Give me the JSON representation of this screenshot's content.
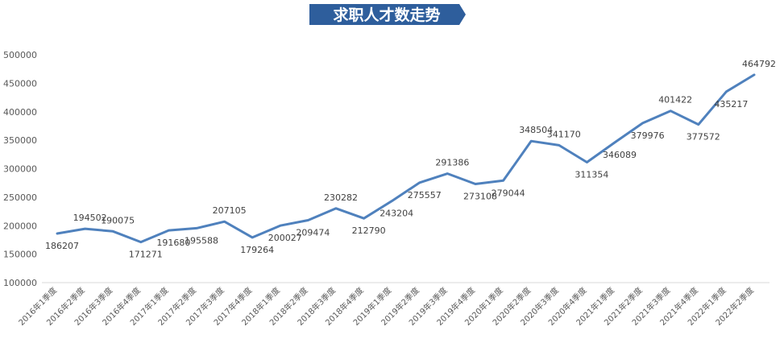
{
  "chart_data": {
    "type": "line",
    "title": "求职人才数走势",
    "xlabel": "",
    "ylabel": "",
    "ylim": [
      100000,
      500000
    ],
    "yticks": [
      "100000",
      "150000",
      "200000",
      "250000",
      "300000",
      "350000",
      "400000",
      "450000",
      "500000"
    ],
    "grid": false,
    "legend": "none",
    "line_color": "#4F81BD",
    "title_bg_color": "#2E5E9C",
    "categories": [
      "2016年1季度",
      "2016年2季度",
      "2016年3季度",
      "2016年4季度",
      "2017年1季度",
      "2017年2季度",
      "2017年3季度",
      "2017年4季度",
      "2018年1季度",
      "2018年2季度",
      "2018年3季度",
      "2018年4季度",
      "2019年1季度",
      "2019年2季度",
      "2019年3季度",
      "2019年4季度",
      "2020年1季度",
      "2020年2季度",
      "2020年3季度",
      "2020年4季度",
      "2021年1季度",
      "2021年2季度",
      "2021年3季度",
      "2021年4季度",
      "2022年1季度",
      "2022年2季度"
    ],
    "values": [
      186207,
      194502,
      190075,
      171271,
      191680,
      195588,
      207105,
      179264,
      200027,
      209474,
      230282,
      212790,
      243204,
      275557,
      291386,
      273108,
      279044,
      348504,
      341170,
      311354,
      346089,
      379976,
      401422,
      377572,
      435217,
      464792
    ]
  }
}
